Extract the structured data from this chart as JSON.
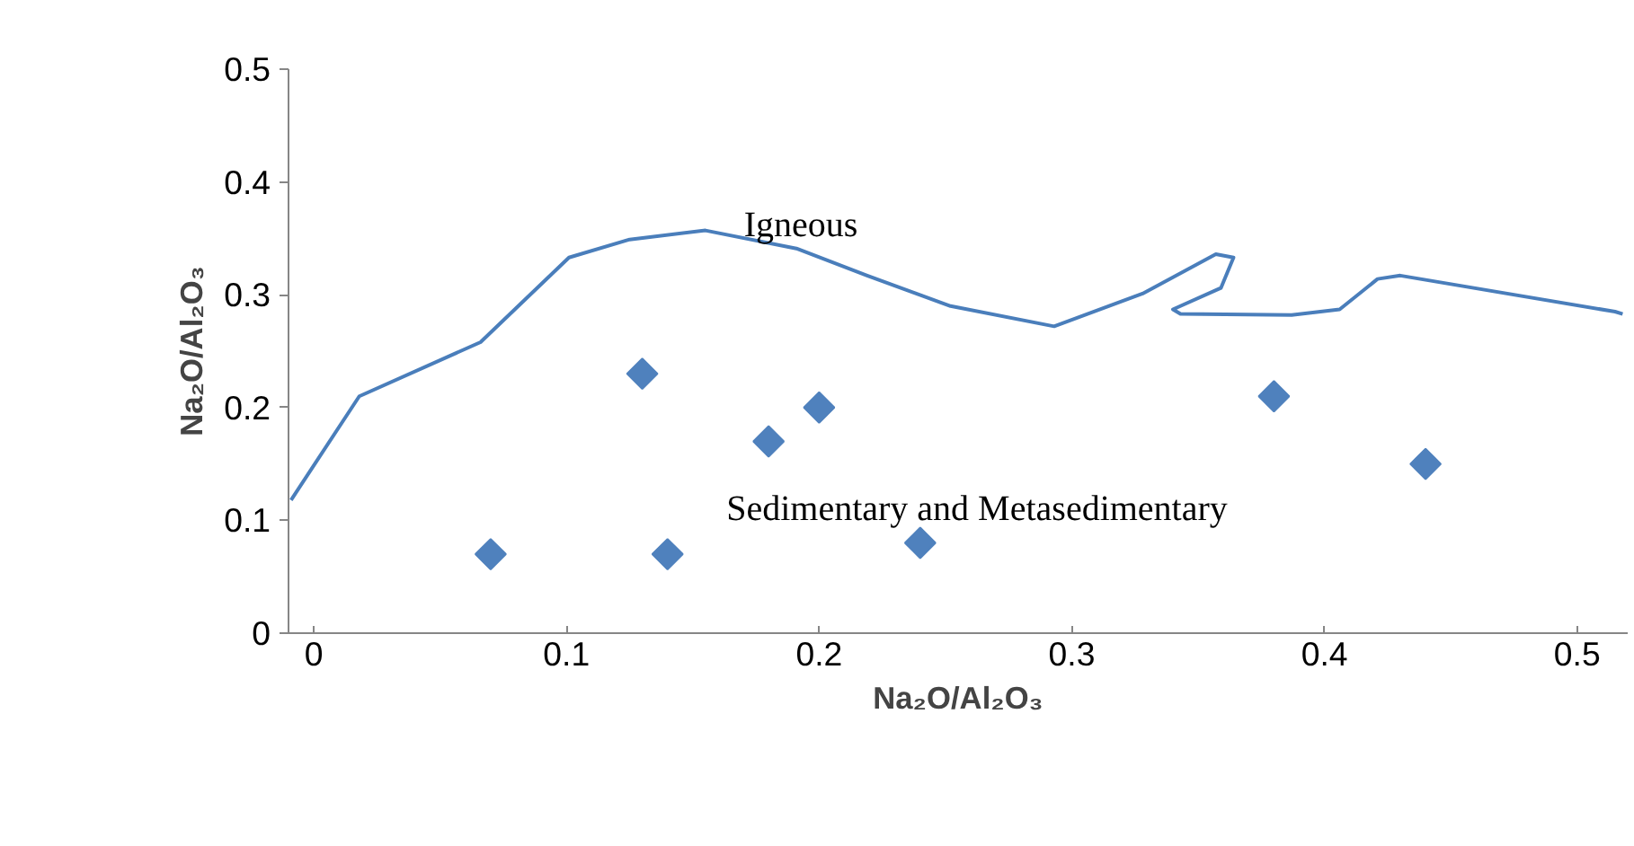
{
  "chart_data": {
    "type": "scatter",
    "xlabel": "Na₂O/Al₂O₃",
    "ylabel": "Na₂O/Al₂O₃",
    "xlim": [
      -0.01,
      0.52
    ],
    "ylim": [
      0,
      0.5
    ],
    "xticks": [
      0,
      0.1,
      0.2,
      0.3,
      0.4,
      0.5
    ],
    "yticks": [
      0,
      0.1,
      0.2,
      0.3,
      0.4,
      0.5
    ],
    "grid": false,
    "series": [
      {
        "marker": "diamond",
        "color": "#4f81bd",
        "x": [
          0.07,
          0.13,
          0.14,
          0.18,
          0.2,
          0.24,
          0.38,
          0.44
        ],
        "values": [
          0.07,
          0.23,
          0.07,
          0.17,
          0.2,
          0.08,
          0.21,
          0.15
        ]
      },
      {
        "type": "line",
        "color": "#4a7ebb",
        "x": [
          -0.009,
          0.018,
          0.066,
          0.101,
          0.125,
          0.155,
          0.191,
          0.219,
          0.252,
          0.293,
          0.328,
          0.357,
          0.364,
          0.359,
          0.34,
          0.343,
          0.387,
          0.406,
          0.421,
          0.43,
          0.515,
          0.518
        ],
        "values": [
          0.118,
          0.21,
          0.258,
          0.333,
          0.349,
          0.357,
          0.341,
          0.317,
          0.29,
          0.272,
          0.301,
          0.336,
          0.333,
          0.306,
          0.287,
          0.283,
          0.282,
          0.287,
          0.314,
          0.317,
          0.285,
          0.283
        ]
      }
    ],
    "annotations": [
      "Igneous",
      "Sedimentary and Metasedimentary"
    ]
  }
}
